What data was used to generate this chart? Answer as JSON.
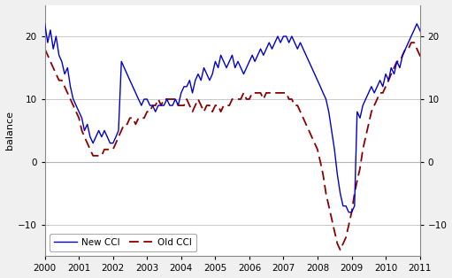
{
  "title": "",
  "ylabel_left": "balance",
  "ylim": [
    -15,
    25
  ],
  "yticks": [
    -10,
    0,
    10,
    20
  ],
  "new_cci": [
    22,
    19,
    21,
    18,
    20,
    17,
    16,
    14,
    15,
    12,
    10,
    9,
    8,
    7,
    5,
    6,
    4,
    3,
    4,
    5,
    4,
    5,
    4,
    3,
    3,
    4,
    5,
    16,
    15,
    14,
    13,
    12,
    11,
    10,
    9,
    10,
    10,
    9,
    9,
    8,
    9,
    9,
    9,
    10,
    9,
    9,
    10,
    9,
    11,
    12,
    12,
    13,
    11,
    13,
    14,
    13,
    15,
    14,
    13,
    14,
    16,
    15,
    17,
    16,
    15,
    16,
    17,
    15,
    16,
    15,
    14,
    15,
    16,
    17,
    16,
    17,
    18,
    17,
    18,
    19,
    18,
    19,
    20,
    19,
    20,
    20,
    19,
    20,
    19,
    18,
    19,
    18,
    17,
    16,
    15,
    14,
    13,
    12,
    11,
    10,
    8,
    5,
    2,
    -2,
    -5,
    -7,
    -7,
    -8,
    -8,
    -7,
    8,
    7,
    9,
    10,
    11,
    12,
    11,
    12,
    13,
    12,
    14,
    13,
    15,
    14,
    16,
    15,
    17,
    18,
    19,
    20,
    21,
    22,
    21,
    20,
    19,
    18
  ],
  "old_cci": [
    18,
    17,
    16,
    15,
    14,
    13,
    13,
    12,
    11,
    10,
    9,
    8,
    7,
    5,
    4,
    3,
    2,
    1,
    1,
    1,
    1,
    2,
    2,
    2,
    2,
    3,
    4,
    5,
    6,
    6,
    7,
    7,
    6,
    7,
    7,
    7,
    8,
    8,
    9,
    9,
    10,
    9,
    10,
    10,
    10,
    10,
    10,
    9,
    9,
    9,
    10,
    9,
    8,
    9,
    10,
    9,
    8,
    9,
    9,
    8,
    9,
    9,
    8,
    9,
    9,
    9,
    10,
    10,
    10,
    10,
    11,
    10,
    10,
    11,
    11,
    11,
    11,
    10,
    11,
    11,
    11,
    11,
    11,
    11,
    11,
    11,
    10,
    10,
    9,
    9,
    8,
    7,
    6,
    5,
    4,
    3,
    2,
    0,
    -2,
    -5,
    -7,
    -9,
    -11,
    -13,
    -14,
    -13,
    -12,
    -10,
    -8,
    -5,
    -3,
    -1,
    2,
    4,
    6,
    8,
    9,
    10,
    11,
    11,
    12,
    13,
    14,
    15,
    16,
    16,
    17,
    18,
    18,
    19,
    19,
    18,
    17,
    16,
    15,
    14
  ],
  "new_cci_color": "#0000cc",
  "old_cci_color": "#8b0000",
  "background_color": "#f0f0f0",
  "plot_bg_color": "#ffffff",
  "grid_color": "#c0c0c0",
  "legend_loc": "lower left"
}
